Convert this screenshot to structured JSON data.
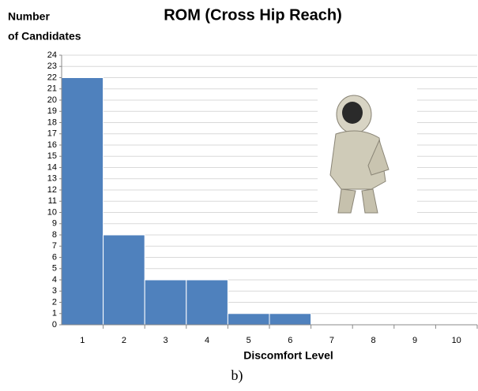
{
  "chart_data": {
    "type": "bar",
    "title": "ROM (Cross Hip Reach)",
    "ylabel": [
      "Number",
      "of Candidates"
    ],
    "xlabel": "Discomfort Level",
    "caption": "b)",
    "categories": [
      "1",
      "2",
      "3",
      "4",
      "5",
      "6",
      "7",
      "8",
      "9",
      "10"
    ],
    "values": [
      22,
      8,
      4,
      4,
      1,
      1,
      0,
      0,
      0,
      0
    ],
    "color": "#4f81bd",
    "ylim": [
      0,
      24
    ],
    "yticks": [
      0,
      1,
      2,
      3,
      4,
      5,
      6,
      7,
      8,
      9,
      10,
      11,
      12,
      13,
      14,
      15,
      16,
      17,
      18,
      19,
      20,
      21,
      22,
      23,
      24
    ],
    "grid": true
  }
}
